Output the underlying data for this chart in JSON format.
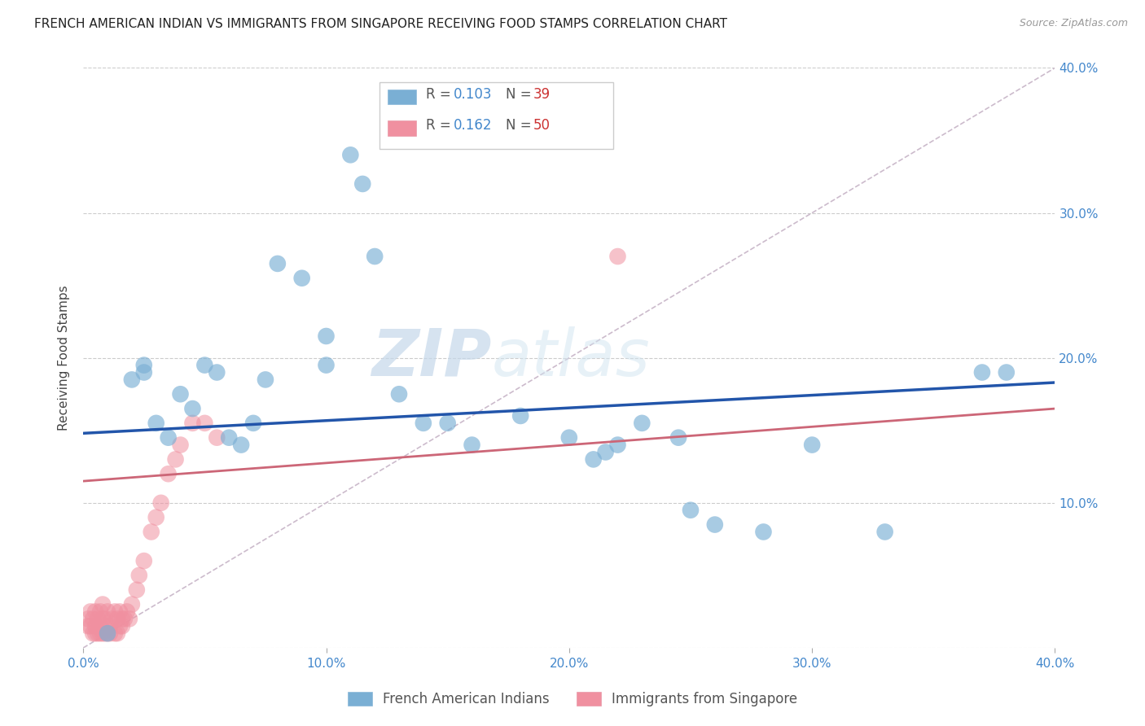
{
  "title": "FRENCH AMERICAN INDIAN VS IMMIGRANTS FROM SINGAPORE RECEIVING FOOD STAMPS CORRELATION CHART",
  "source": "Source: ZipAtlas.com",
  "ylabel": "Receiving Food Stamps",
  "xlim": [
    0.0,
    0.4
  ],
  "ylim": [
    0.0,
    0.4
  ],
  "xtick_vals": [
    0.0,
    0.1,
    0.2,
    0.3,
    0.4
  ],
  "ytick_vals": [
    0.0,
    0.1,
    0.2,
    0.3,
    0.4
  ],
  "blue_scatter_x": [
    0.01,
    0.02,
    0.025,
    0.025,
    0.03,
    0.035,
    0.04,
    0.045,
    0.05,
    0.055,
    0.06,
    0.065,
    0.07,
    0.075,
    0.08,
    0.09,
    0.1,
    0.1,
    0.11,
    0.115,
    0.12,
    0.13,
    0.14,
    0.15,
    0.16,
    0.18,
    0.2,
    0.21,
    0.215,
    0.22,
    0.23,
    0.245,
    0.25,
    0.26,
    0.28,
    0.3,
    0.33,
    0.37,
    0.38
  ],
  "blue_scatter_y": [
    0.01,
    0.185,
    0.195,
    0.19,
    0.155,
    0.145,
    0.175,
    0.165,
    0.195,
    0.19,
    0.145,
    0.14,
    0.155,
    0.185,
    0.265,
    0.255,
    0.195,
    0.215,
    0.34,
    0.32,
    0.27,
    0.175,
    0.155,
    0.155,
    0.14,
    0.16,
    0.145,
    0.13,
    0.135,
    0.14,
    0.155,
    0.145,
    0.095,
    0.085,
    0.08,
    0.14,
    0.08,
    0.19,
    0.19
  ],
  "pink_scatter_x": [
    0.002,
    0.002,
    0.003,
    0.003,
    0.004,
    0.004,
    0.005,
    0.005,
    0.005,
    0.006,
    0.006,
    0.007,
    0.007,
    0.007,
    0.008,
    0.008,
    0.008,
    0.009,
    0.009,
    0.01,
    0.01,
    0.01,
    0.011,
    0.011,
    0.012,
    0.013,
    0.013,
    0.014,
    0.014,
    0.015,
    0.015,
    0.016,
    0.016,
    0.017,
    0.018,
    0.019,
    0.02,
    0.022,
    0.023,
    0.025,
    0.028,
    0.03,
    0.032,
    0.035,
    0.038,
    0.04,
    0.045,
    0.05,
    0.055,
    0.22
  ],
  "pink_scatter_y": [
    0.015,
    0.02,
    0.015,
    0.025,
    0.01,
    0.02,
    0.01,
    0.015,
    0.025,
    0.01,
    0.02,
    0.01,
    0.015,
    0.025,
    0.01,
    0.02,
    0.03,
    0.01,
    0.02,
    0.01,
    0.015,
    0.025,
    0.01,
    0.015,
    0.02,
    0.01,
    0.025,
    0.01,
    0.02,
    0.015,
    0.025,
    0.015,
    0.02,
    0.02,
    0.025,
    0.02,
    0.03,
    0.04,
    0.05,
    0.06,
    0.08,
    0.09,
    0.1,
    0.12,
    0.13,
    0.14,
    0.155,
    0.155,
    0.145,
    0.27
  ],
  "blue_line_x": [
    0.0,
    0.4
  ],
  "blue_line_y": [
    0.148,
    0.183
  ],
  "pink_line_x": [
    0.0,
    0.4
  ],
  "pink_line_y": [
    0.115,
    0.165
  ],
  "diagonal_line_x": [
    0.0,
    0.4
  ],
  "diagonal_line_y": [
    0.0,
    0.4
  ],
  "scatter_color_blue": "#7aafd4",
  "scatter_color_pink": "#f090a0",
  "line_color_blue": "#2255aa",
  "line_color_pink": "#cc6677",
  "diagonal_color": "#ccbbcc",
  "background_color": "#ffffff",
  "watermark_zip": "ZIP",
  "watermark_atlas": "atlas",
  "legend_r1": "R = ",
  "legend_v1": "0.103",
  "legend_n1_label": "N = ",
  "legend_n1_val": "39",
  "legend_r2": "R = ",
  "legend_v2": "0.162",
  "legend_n2_label": "N = ",
  "legend_n2_val": "50",
  "legend_blue_label": "French American Indians",
  "legend_pink_label": "Immigrants from Singapore",
  "title_fontsize": 11,
  "axis_label_fontsize": 11,
  "tick_fontsize": 11
}
